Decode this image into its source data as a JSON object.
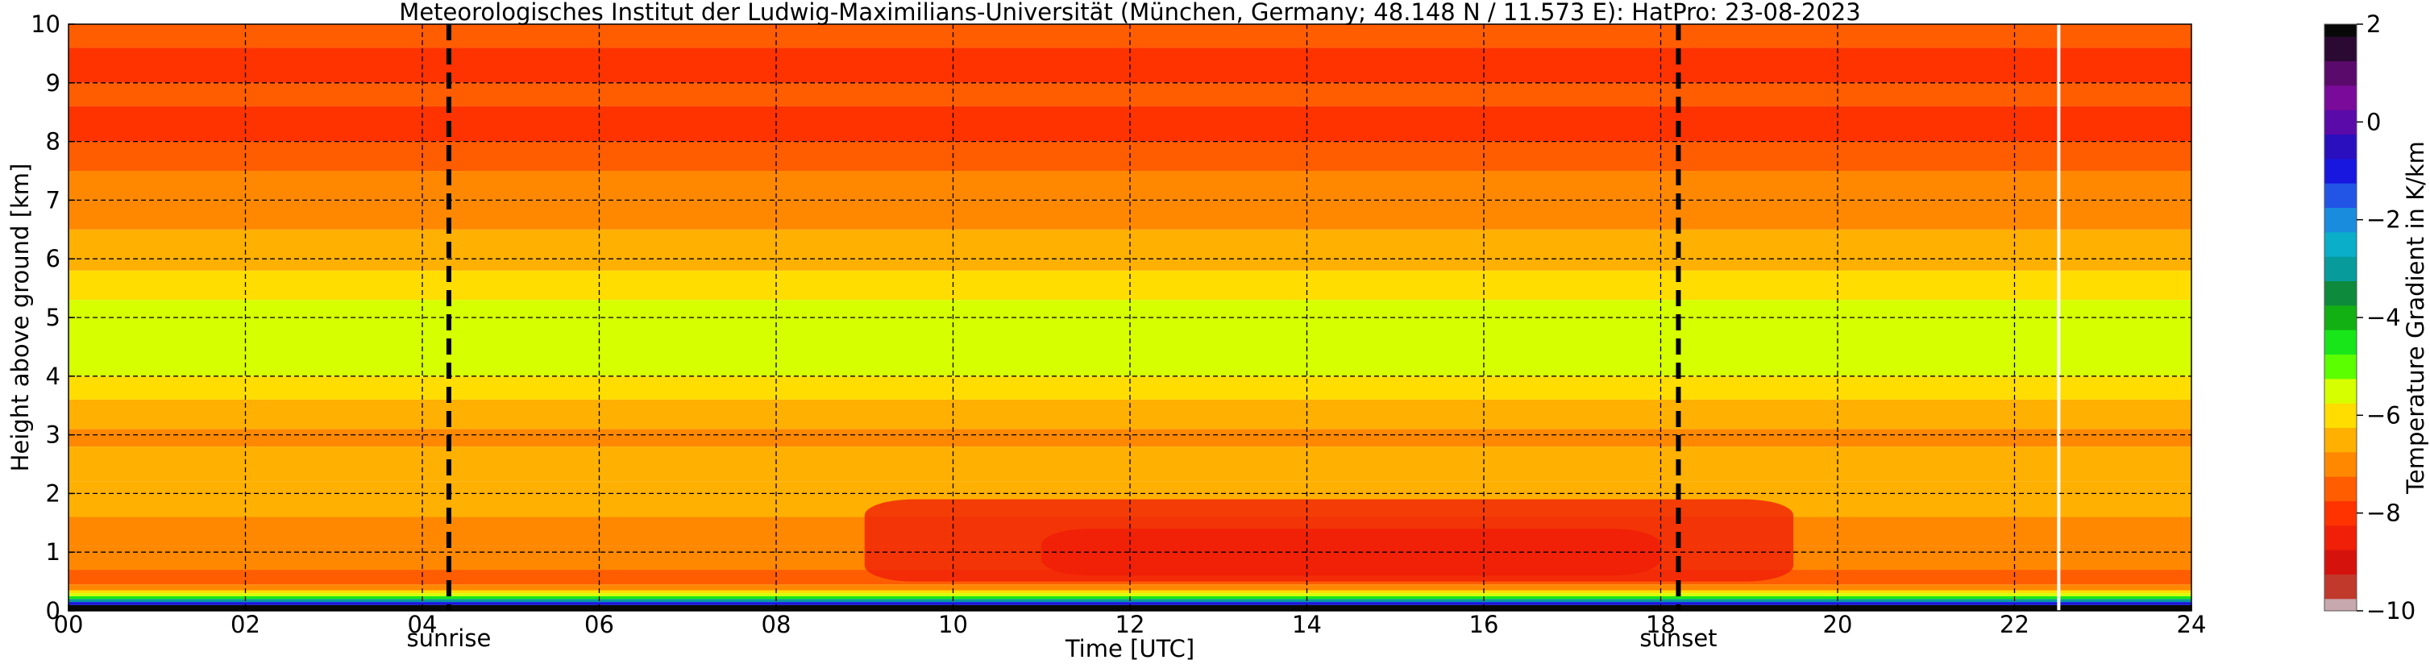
{
  "chart_data": {
    "type": "heatmap",
    "title": "Meteorologisches Institut der Ludwig-Maximilians-Universität (München, Germany; 48.148 N / 11.573 E):    HatPro: 23-08-2023",
    "xlabel": "Time [UTC]",
    "ylabel": "Height above ground [km]",
    "xlim": [
      0,
      24
    ],
    "ylim": [
      0,
      10
    ],
    "x_ticks": [
      0,
      2,
      4,
      6,
      8,
      10,
      12,
      14,
      16,
      18,
      20,
      22,
      24
    ],
    "x_tick_labels": [
      "00",
      "02",
      "04",
      "06",
      "08",
      "10",
      "12",
      "14",
      "16",
      "18",
      "20",
      "22",
      "24"
    ],
    "y_ticks": [
      0,
      1,
      2,
      3,
      4,
      5,
      6,
      7,
      8,
      9,
      10
    ],
    "y_tick_labels": [
      "0",
      "1",
      "2",
      "3",
      "4",
      "5",
      "6",
      "7",
      "8",
      "9",
      "10"
    ],
    "grid": "dashed",
    "colorbar": {
      "label": "Temperature Gradient in K/km",
      "range": [
        -10,
        2
      ],
      "ticks": [
        2,
        0,
        -2,
        -4,
        -6,
        -8,
        -10
      ],
      "tick_labels": [
        "2",
        "0",
        "−2",
        "−4",
        "−6",
        "−8",
        "−10"
      ],
      "colors": [
        {
          "value": -10,
          "color": "#c6a8ae"
        },
        {
          "value": -9.5,
          "color": "#c0392b"
        },
        {
          "value": -9.0,
          "color": "#d6120d"
        },
        {
          "value": -8.5,
          "color": "#f01f08"
        },
        {
          "value": -8.0,
          "color": "#ff3300"
        },
        {
          "value": -7.5,
          "color": "#ff5d00"
        },
        {
          "value": -7.0,
          "color": "#ff8800"
        },
        {
          "value": -6.5,
          "color": "#ffb000"
        },
        {
          "value": -6.0,
          "color": "#ffdd00"
        },
        {
          "value": -5.5,
          "color": "#d6ff00"
        },
        {
          "value": -5.0,
          "color": "#5cff00"
        },
        {
          "value": -4.5,
          "color": "#19e619"
        },
        {
          "value": -4.0,
          "color": "#13b013"
        },
        {
          "value": -3.5,
          "color": "#0d8a3c"
        },
        {
          "value": -3.0,
          "color": "#079b9b"
        },
        {
          "value": -2.5,
          "color": "#0aaec8"
        },
        {
          "value": -2.0,
          "color": "#1a8cde"
        },
        {
          "value": -1.5,
          "color": "#2255e6"
        },
        {
          "value": -1.0,
          "color": "#1717e0"
        },
        {
          "value": -0.5,
          "color": "#2a0fbf"
        },
        {
          "value": 0.0,
          "color": "#5a0aa8"
        },
        {
          "value": 0.5,
          "color": "#7a0a9a"
        },
        {
          "value": 1.0,
          "color": "#5a0a6a"
        },
        {
          "value": 1.5,
          "color": "#2a0a33"
        },
        {
          "value": 2.0,
          "color": "#080808"
        }
      ]
    },
    "profile": [
      {
        "h0": 0.0,
        "h1": 0.1,
        "value": 2.0
      },
      {
        "h0": 0.1,
        "h1": 0.15,
        "value": -1.0
      },
      {
        "h0": 0.15,
        "h1": 0.2,
        "value": -3.0
      },
      {
        "h0": 0.2,
        "h1": 0.25,
        "value": -4.5
      },
      {
        "h0": 0.25,
        "h1": 0.3,
        "value": -5.3
      },
      {
        "h0": 0.3,
        "h1": 0.35,
        "value": -6.0
      },
      {
        "h0": 0.35,
        "h1": 0.45,
        "value": -6.8
      },
      {
        "h0": 0.45,
        "h1": 0.7,
        "value": -7.6
      },
      {
        "h0": 0.7,
        "h1": 1.1,
        "value": -7.2
      },
      {
        "h0": 1.1,
        "h1": 1.6,
        "value": -6.9
      },
      {
        "h0": 1.6,
        "h1": 2.2,
        "value": -6.4
      },
      {
        "h0": 2.2,
        "h1": 2.8,
        "value": -6.6
      },
      {
        "h0": 2.8,
        "h1": 3.1,
        "value": -7.0
      },
      {
        "h0": 3.1,
        "h1": 3.6,
        "value": -6.6
      },
      {
        "h0": 3.6,
        "h1": 4.0,
        "value": -6.1
      },
      {
        "h0": 4.0,
        "h1": 5.3,
        "value": -5.5
      },
      {
        "h0": 5.3,
        "h1": 5.8,
        "value": -5.9
      },
      {
        "h0": 5.8,
        "h1": 6.5,
        "value": -6.4
      },
      {
        "h0": 6.5,
        "h1": 7.0,
        "value": -6.8
      },
      {
        "h0": 7.0,
        "h1": 7.5,
        "value": -7.1
      },
      {
        "h0": 7.5,
        "h1": 8.0,
        "value": -7.4
      },
      {
        "h0": 8.0,
        "h1": 8.6,
        "value": -7.8
      },
      {
        "h0": 8.6,
        "h1": 9.0,
        "value": -7.6
      },
      {
        "h0": 9.0,
        "h1": 9.6,
        "value": -8.0
      },
      {
        "h0": 9.6,
        "h1": 10.0,
        "value": -7.6
      }
    ],
    "afternoon_layer": {
      "x0": 9.0,
      "x1": 19.5,
      "h0": 0.5,
      "h1": 1.9,
      "value": -8.3
    },
    "afternoon_core": {
      "x0": 11.0,
      "x1": 18.0,
      "h0": 0.6,
      "h1": 1.4,
      "value": -8.6
    },
    "missing_data_time": 22.5,
    "annotations": [
      {
        "text": "sunrise",
        "x": 4.3
      },
      {
        "text": "sunset",
        "x": 18.2
      }
    ]
  }
}
